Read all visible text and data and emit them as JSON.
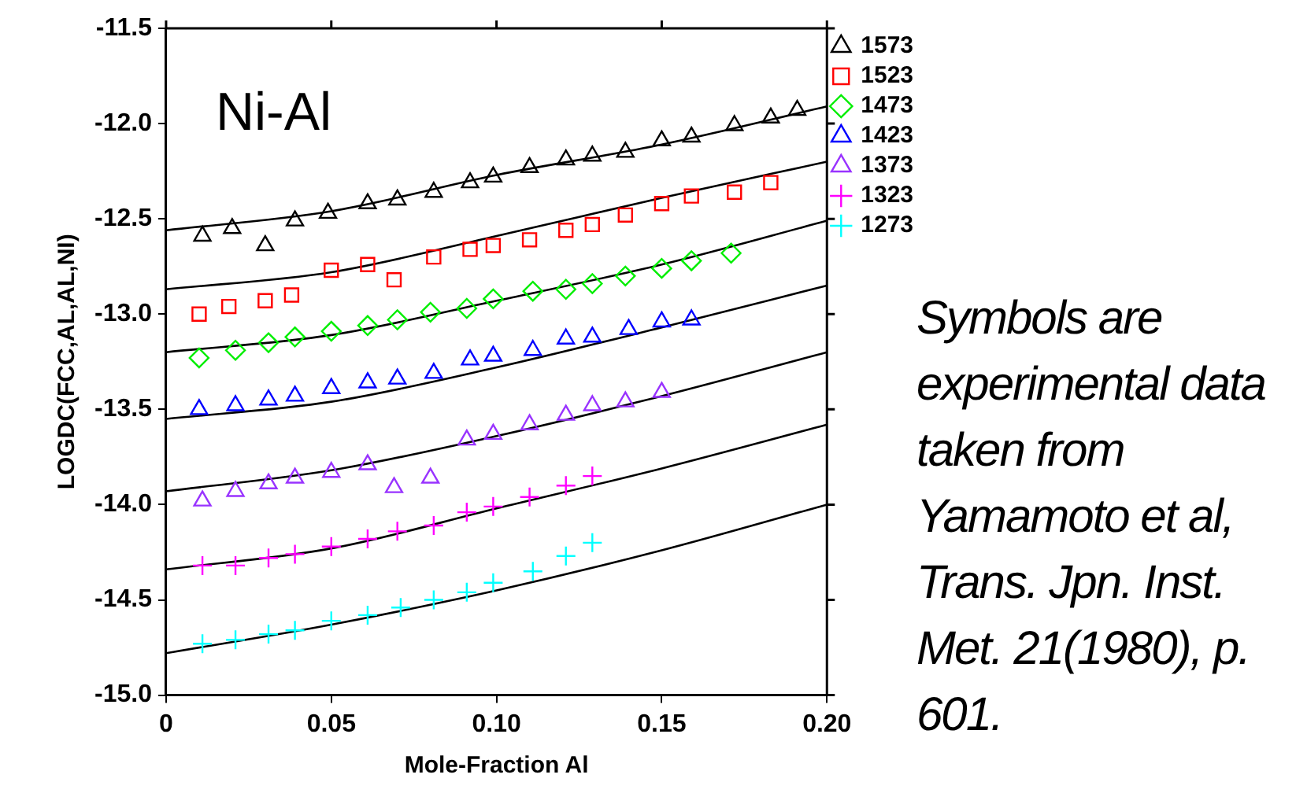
{
  "chart_data": {
    "type": "scatter",
    "title": "Ni-Al",
    "xlabel": "Mole-Fraction Al",
    "ylabel": "LOGDC(FCC,AL,AL,NI)",
    "xlim": [
      0,
      0.2
    ],
    "xticks": [
      0,
      0.05,
      {
        "value": 0.1,
        "label": "0.10"
      },
      {
        "value": 0.15,
        "label": "0.15"
      },
      {
        "value": 0.2,
        "label": "0.20"
      }
    ],
    "ylim": [
      -15,
      -11.5
    ],
    "yticks": [
      {
        "value": -15,
        "label": "-15.0"
      },
      {
        "value": -14.5,
        "label": "-14.5"
      },
      {
        "value": -14,
        "label": "-14.0"
      },
      {
        "value": -13.5,
        "label": "-13.5"
      },
      {
        "value": -13,
        "label": "-13.0"
      },
      {
        "value": -12.5,
        "label": "-12.5"
      },
      {
        "value": -12,
        "label": "-12.0"
      },
      {
        "value": -11.5,
        "label": "-11.5"
      }
    ],
    "grid": false,
    "legend": "right",
    "line_style": "solid",
    "annotations": [
      "Symbols are experimental data taken from Yamamoto et al, Trans. Jpn. Inst. Met. 21(1980), p. 601."
    ],
    "series": [
      {
        "name": "1573",
        "type": "scatter",
        "marker": "triangle",
        "color": "#000000",
        "x": [
          0.011,
          0.02,
          0.03,
          0.039,
          0.049,
          0.061,
          0.07,
          0.081,
          0.092,
          0.099,
          0.11,
          0.121,
          0.129,
          0.139,
          0.15,
          0.159,
          0.172,
          0.183,
          0.191
        ],
        "values": [
          -12.59,
          -12.55,
          -12.64,
          -12.51,
          -12.47,
          -12.42,
          -12.4,
          -12.36,
          -12.31,
          -12.28,
          -12.23,
          -12.19,
          -12.17,
          -12.15,
          -12.09,
          -12.07,
          -12.01,
          -11.97,
          -11.93
        ]
      },
      {
        "name": "1523",
        "type": "scatter",
        "marker": "square",
        "color": "#ff0000",
        "x": [
          0.01,
          0.019,
          0.03,
          0.038,
          0.05,
          0.061,
          0.069,
          0.081,
          0.092,
          0.099,
          0.11,
          0.121,
          0.129,
          0.139,
          0.15,
          0.159,
          0.172,
          0.183
        ],
        "values": [
          -13.0,
          -12.96,
          -12.93,
          -12.9,
          -12.77,
          -12.74,
          -12.82,
          -12.7,
          -12.66,
          -12.64,
          -12.61,
          -12.56,
          -12.53,
          -12.48,
          -12.42,
          -12.38,
          -12.36,
          -12.31
        ]
      },
      {
        "name": "1473",
        "type": "scatter",
        "marker": "diamond",
        "color": "#00ee00",
        "x": [
          0.01,
          0.021,
          0.031,
          0.039,
          0.05,
          0.061,
          0.07,
          0.08,
          0.091,
          0.099,
          0.111,
          0.121,
          0.129,
          0.139,
          0.15,
          0.159,
          0.171
        ],
        "values": [
          -13.23,
          -13.19,
          -13.15,
          -13.12,
          -13.09,
          -13.06,
          -13.03,
          -12.99,
          -12.97,
          -12.92,
          -12.88,
          -12.87,
          -12.84,
          -12.8,
          -12.76,
          -12.72,
          -12.68
        ]
      },
      {
        "name": "1423",
        "type": "scatter",
        "marker": "triangle",
        "color": "#0000ff",
        "x": [
          0.01,
          0.021,
          0.031,
          0.039,
          0.05,
          0.061,
          0.07,
          0.081,
          0.092,
          0.099,
          0.111,
          0.121,
          0.129,
          0.14,
          0.15,
          0.159
        ],
        "values": [
          -13.5,
          -13.48,
          -13.45,
          -13.43,
          -13.39,
          -13.36,
          -13.34,
          -13.31,
          -13.24,
          -13.22,
          -13.19,
          -13.13,
          -13.12,
          -13.08,
          -13.04,
          -13.03
        ]
      },
      {
        "name": "1373",
        "type": "scatter",
        "marker": "triangle",
        "color": "#9933ff",
        "x": [
          0.011,
          0.021,
          0.031,
          0.039,
          0.05,
          0.061,
          0.069,
          0.08,
          0.091,
          0.099,
          0.11,
          0.121,
          0.129,
          0.139,
          0.15
        ],
        "values": [
          -13.98,
          -13.93,
          -13.89,
          -13.86,
          -13.83,
          -13.79,
          -13.91,
          -13.86,
          -13.66,
          -13.63,
          -13.58,
          -13.53,
          -13.48,
          -13.46,
          -13.41
        ]
      },
      {
        "name": "1323",
        "type": "scatter",
        "marker": "cross",
        "color": "#ff00ff",
        "x": [
          0.011,
          0.021,
          0.031,
          0.039,
          0.05,
          0.061,
          0.07,
          0.081,
          0.091,
          0.099,
          0.11,
          0.121,
          0.129
        ],
        "values": [
          -14.32,
          -14.32,
          -14.28,
          -14.26,
          -14.22,
          -14.18,
          -14.14,
          -14.11,
          -14.04,
          -14.01,
          -13.96,
          -13.9,
          -13.85
        ]
      },
      {
        "name": "1273",
        "type": "scatter",
        "marker": "cross",
        "color": "#00ffff",
        "x": [
          0.011,
          0.021,
          0.031,
          0.039,
          0.05,
          0.061,
          0.071,
          0.081,
          0.091,
          0.099,
          0.111,
          0.121,
          0.129
        ],
        "values": [
          -14.73,
          -14.71,
          -14.68,
          -14.66,
          -14.61,
          -14.58,
          -14.54,
          -14.5,
          -14.46,
          -14.41,
          -14.35,
          -14.27,
          -14.2
        ]
      },
      {
        "type": "line",
        "marker": "none",
        "color": "#000000",
        "x": [
          0,
          0.05,
          0.1,
          0.15,
          0.2
        ],
        "values": [
          -12.56,
          -12.46,
          -12.27,
          -12.11,
          -11.91
        ]
      },
      {
        "type": "line",
        "marker": "none",
        "color": "#000000",
        "x": [
          0,
          0.05,
          0.1,
          0.15,
          0.2
        ],
        "values": [
          -12.87,
          -12.78,
          -12.59,
          -12.39,
          -12.2
        ]
      },
      {
        "type": "line",
        "marker": "none",
        "color": "#000000",
        "x": [
          0,
          0.05,
          0.1,
          0.15,
          0.2
        ],
        "values": [
          -13.2,
          -13.11,
          -12.93,
          -12.74,
          -12.51
        ]
      },
      {
        "type": "line",
        "marker": "none",
        "color": "#000000",
        "x": [
          0,
          0.05,
          0.1,
          0.15,
          0.2
        ],
        "values": [
          -13.55,
          -13.46,
          -13.28,
          -13.07,
          -12.85
        ]
      },
      {
        "type": "line",
        "marker": "none",
        "color": "#000000",
        "x": [
          0,
          0.05,
          0.1,
          0.15,
          0.2
        ],
        "values": [
          -13.93,
          -13.82,
          -13.64,
          -13.43,
          -13.2
        ]
      },
      {
        "type": "line",
        "marker": "none",
        "color": "#000000",
        "x": [
          0,
          0.05,
          0.1,
          0.15,
          0.2
        ],
        "values": [
          -14.34,
          -14.23,
          -14.02,
          -13.81,
          -13.58
        ]
      },
      {
        "type": "line",
        "marker": "none",
        "color": "#000000",
        "x": [
          0,
          0.05,
          0.1,
          0.15,
          0.2
        ],
        "values": [
          -14.78,
          -14.63,
          -14.45,
          -14.24,
          -14.0
        ]
      }
    ]
  }
}
